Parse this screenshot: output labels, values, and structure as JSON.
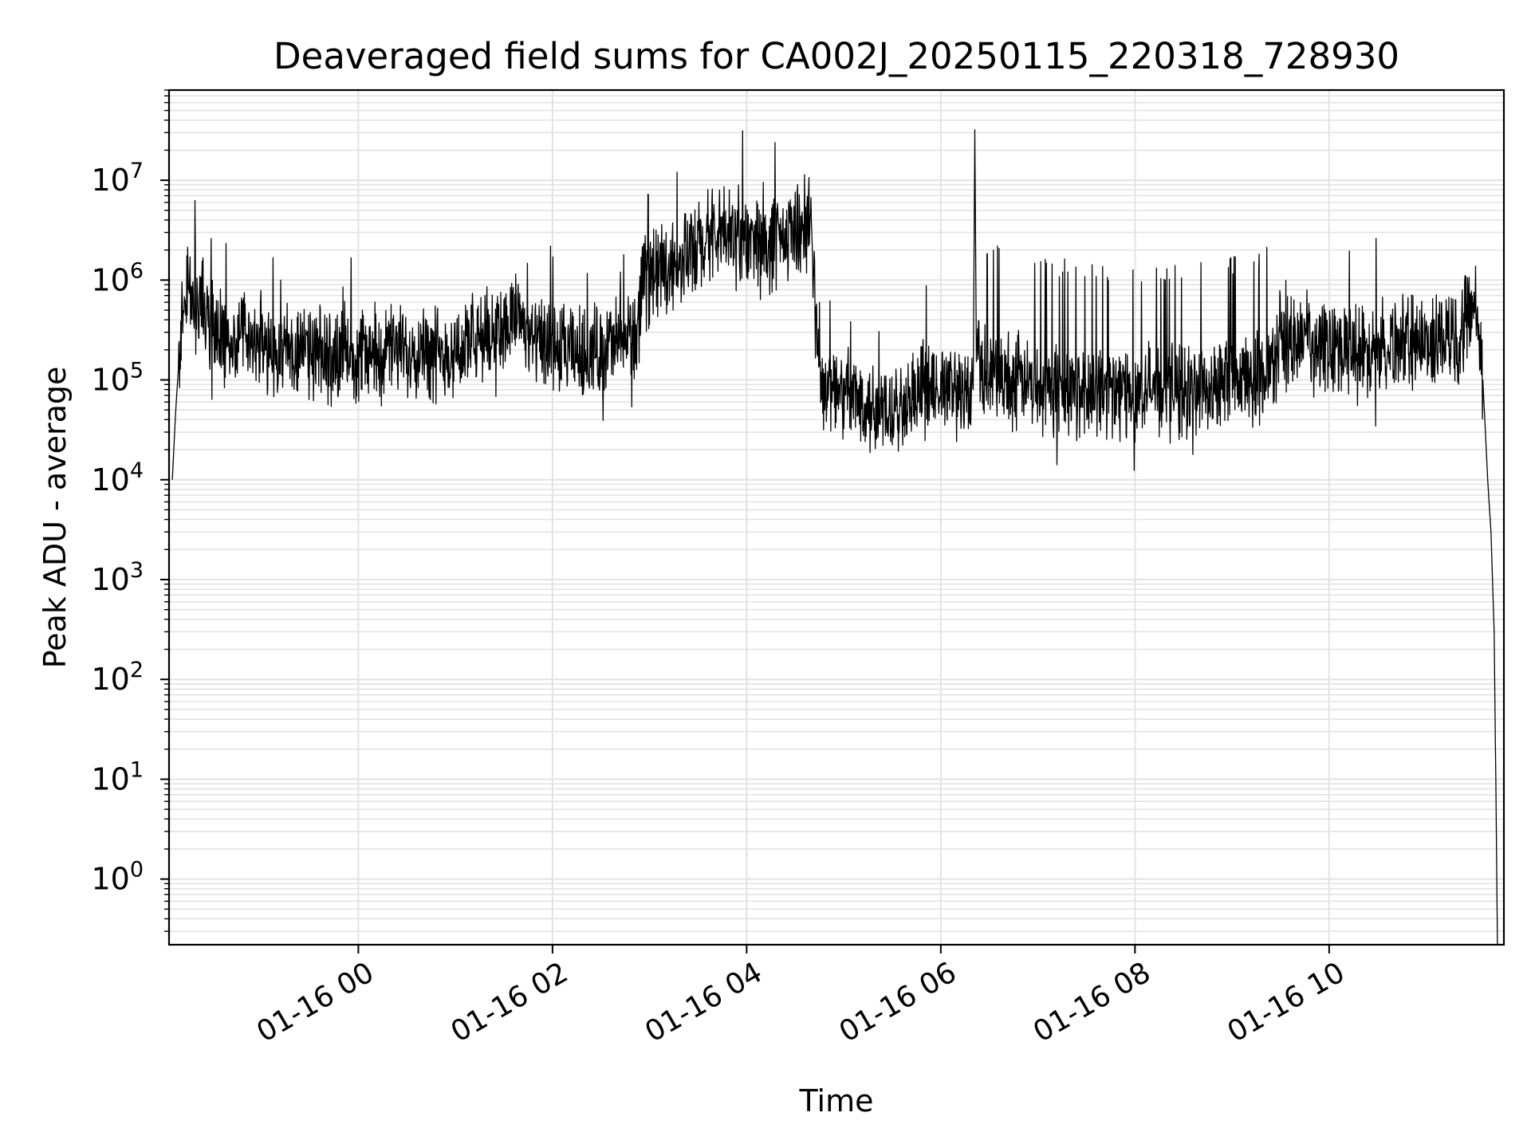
{
  "chart_data": {
    "type": "line",
    "title": "Deaveraged field sums for CA002J_20250115_220318_728930",
    "xlabel": "Time",
    "ylabel": "Peak ADU - average",
    "yscale": "log",
    "ylim": [
      0.22,
      80000000
    ],
    "xlim": [
      "2025-01-15 22:03",
      "2025-01-16 11:48"
    ],
    "grid": true,
    "x_ticks": [
      {
        "t": "2025-01-16 00:00",
        "label": "01-16 00"
      },
      {
        "t": "2025-01-16 02:00",
        "label": "01-16 02"
      },
      {
        "t": "2025-01-16 04:00",
        "label": "01-16 04"
      },
      {
        "t": "2025-01-16 06:00",
        "label": "01-16 06"
      },
      {
        "t": "2025-01-16 08:00",
        "label": "01-16 08"
      },
      {
        "t": "2025-01-16 10:00",
        "label": "01-16 10"
      }
    ],
    "y_ticks": [
      {
        "value": 1,
        "base": "10",
        "exp": "0"
      },
      {
        "value": 10,
        "base": "10",
        "exp": "1"
      },
      {
        "value": 100,
        "base": "10",
        "exp": "2"
      },
      {
        "value": 1000,
        "base": "10",
        "exp": "3"
      },
      {
        "value": 10000,
        "base": "10",
        "exp": "4"
      },
      {
        "value": 100000,
        "base": "10",
        "exp": "5"
      },
      {
        "value": 1000000,
        "base": "10",
        "exp": "6"
      },
      {
        "value": 10000000,
        "base": "10",
        "exp": "7"
      }
    ],
    "line_color": "#000000",
    "series": [
      {
        "x": [
          "2025-01-15 22:05",
          "2025-01-15 22:07",
          "2025-01-15 22:09",
          "2025-01-15 22:12",
          "2025-01-15 22:15",
          "2025-01-15 22:20",
          "2025-01-15 22:25",
          "2025-01-15 22:30",
          "2025-01-15 22:35",
          "2025-01-15 22:40",
          "2025-01-15 22:45",
          "2025-01-15 22:50",
          "2025-01-15 22:55",
          "2025-01-15 23:00",
          "2025-01-15 23:10",
          "2025-01-15 23:20",
          "2025-01-15 23:30",
          "2025-01-15 23:40",
          "2025-01-15 23:50",
          "2025-01-16 00:00",
          "2025-01-16 00:15",
          "2025-01-16 00:30",
          "2025-01-16 00:40",
          "2025-01-16 00:45",
          "2025-01-16 01:00",
          "2025-01-16 01:15",
          "2025-01-16 01:30",
          "2025-01-16 01:40",
          "2025-01-16 01:45",
          "2025-01-16 02:00",
          "2025-01-16 02:15",
          "2025-01-16 02:30",
          "2025-01-16 02:45",
          "2025-01-16 02:52",
          "2025-01-16 02:55",
          "2025-01-16 03:00",
          "2025-01-16 03:15",
          "2025-01-16 03:30",
          "2025-01-16 03:45",
          "2025-01-16 04:00",
          "2025-01-16 04:15",
          "2025-01-16 04:30",
          "2025-01-16 04:40",
          "2025-01-16 04:41",
          "2025-01-16 04:45",
          "2025-01-16 05:00",
          "2025-01-16 05:15",
          "2025-01-16 05:30",
          "2025-01-16 05:45",
          "2025-01-16 06:00",
          "2025-01-16 06:15",
          "2025-01-16 06:20",
          "2025-01-16 06:21",
          "2025-01-16 06:22",
          "2025-01-16 06:30",
          "2025-01-16 06:45",
          "2025-01-16 07:00",
          "2025-01-16 07:30",
          "2025-01-16 08:00",
          "2025-01-16 08:30",
          "2025-01-16 09:00",
          "2025-01-16 09:20",
          "2025-01-16 09:30",
          "2025-01-16 10:00",
          "2025-01-16 10:30",
          "2025-01-16 11:00",
          "2025-01-16 11:20",
          "2025-01-16 11:28",
          "2025-01-16 11:32",
          "2025-01-16 11:35",
          "2025-01-16 11:38",
          "2025-01-16 11:40",
          "2025-01-16 11:42",
          "2025-01-16 11:43",
          "2025-01-16 11:44"
        ],
        "y": [
          10000,
          45000,
          150000,
          600000,
          900000,
          700000,
          500000,
          400000,
          300000,
          200000,
          250000,
          300000,
          250000,
          200000,
          220000,
          200000,
          180000,
          170000,
          200000,
          180000,
          190000,
          200000,
          220000,
          180000,
          200000,
          250000,
          350000,
          500000,
          250000,
          200000,
          180000,
          200000,
          250000,
          300000,
          600000,
          1200000,
          1500000,
          2000000,
          3000000,
          2500000,
          2000000,
          3000000,
          4000000,
          1200000,
          100000,
          70000,
          60000,
          55000,
          70000,
          80000,
          75000,
          80000,
          32000000,
          150000,
          120000,
          100000,
          90000,
          80000,
          75000,
          80000,
          90000,
          100000,
          250000,
          200000,
          220000,
          250000,
          300000,
          600000,
          400000,
          100000,
          10000,
          3000,
          300,
          10,
          0.22
        ]
      }
    ]
  }
}
